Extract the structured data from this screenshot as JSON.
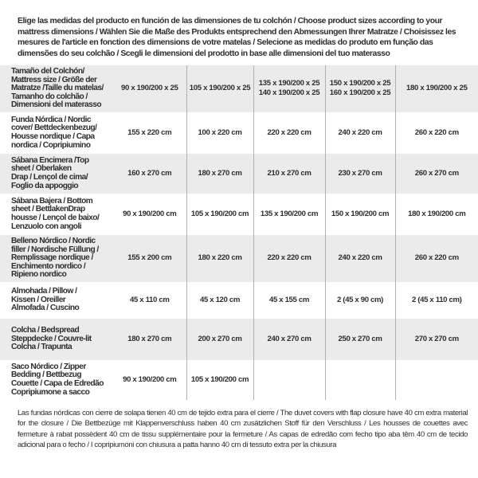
{
  "intro": "Elige las medidas del producto en función de las dimensiones de tu colchón / Choose product sizes according to your mattress dimensions / Wählen Sie die Maße des Produkts entsprechend den Abmessungen Ihrer Matratze / Choisissez les mesures de l'article en fonction des dimensions de votre matelas / Selecione as medidas do produto em função das dimensões do seu colchão / Scegli le dimensioni del prodotto in base alle dimensioni del tuo materasso",
  "table": {
    "rows": [
      {
        "label": "Tamaño del Colchón/\nMattress size / Größe der\nMatratze /Taille du matelas/\nTamanho do colchão /\nDimensioni del materasso",
        "cells": [
          "90 x 190/200 x 25",
          "105 x 190/200 x 25",
          "135 x 190/200 x 25\n140 x 190/200 x 25",
          "150 x 190/200 x 25\n160 x 190/200 x 25",
          "180 x 190/200 x 25"
        ]
      },
      {
        "label": "Funda Nórdica /  Nordic\ncover/ Bettdeckenbezug/\nHousse nordique  / Capa\nnordica / Copripiumino",
        "cells": [
          "155 x 220 cm",
          "100 x 220 cm",
          "220 x 220 cm",
          "240 x 220 cm",
          "260 x 220 cm"
        ]
      },
      {
        "label": "Sábana Encimera /Top\nsheet / Oberlaken\nDrap / Lençol de cima/\nFoglio da appoggio",
        "cells": [
          "160 x 270 cm",
          "180 x 270 cm",
          "210 x 270 cm",
          "230 x 270 cm",
          "260 x 270 cm"
        ]
      },
      {
        "label": "Sábana Bajera / Bottom\nsheet / BettlakenDrap\nhousse / Lençol de baixo/\nLenzuolo con angoli",
        "cells": [
          "90 x 190/200 cm",
          "105 x 190/200 cm",
          "135 x 190/200 cm",
          "150 x 190/200 cm",
          "180 x 190/200 cm"
        ]
      },
      {
        "label": "Belleno Nórdico / Nordic\nfiller / Nordische Füllung /\nRemplissage nordique /\nEnchimento nordico /\nRipieno nordico",
        "cells": [
          "155 x 200 cm",
          "180 x 220 cm",
          "220 x 220 cm",
          "240 x 220 cm",
          "260 x 220 cm"
        ]
      },
      {
        "label": "Almohada  / Pillow /\nKissen / Oreiller\nAlmofada / Cuscino",
        "cells": [
          "45 x 110 cm",
          "45 x 120 cm",
          "45 x 155 cm",
          "2 (45 x 90 cm)",
          "2 (45 x 110 cm)"
        ]
      },
      {
        "label": "Colcha / Bedspread\nSteppdecke / Couvre-lit\nColcha / Trapunta",
        "cells": [
          "180 x 270 cm",
          "200 x 270 cm",
          "240 x 270 cm",
          "250 x 270 cm",
          "270 x 270 cm"
        ]
      },
      {
        "label": "Saco Nórdico / Zipper\nBedding / Bettbezug\nCouette  / Capa de Edredão\nCopripiumone a sacco",
        "cells": [
          "90 x 190/200 cm",
          "105 x 190/200 cm",
          "",
          "",
          ""
        ]
      }
    ]
  },
  "note": "Las fundas nórdicas con cierre de solapa tienen 40 cm de tejido extra para el cierre  / The duvet covers with flap closure have 40 cm extra material for the closure / Die Bettbezüge mit Klappenverschluss haben 40 cm zusätzlichen Stoff für den Verschluss / Les housses de couettes avec fermeture à rabat possèdent 40 cm de tissu supplémentaire pour la fermeture / As capas de edredão com fecho tipo aba têm 40 cm de tecido adicional para o fecho / I copripiumoni con chiusura a patta hanno 40 cm di tessuto extra per la chiusura",
  "colors": {
    "row_alt": "#ebebeb",
    "divider": "#b0b0b0",
    "text": "#2e2e2e"
  }
}
